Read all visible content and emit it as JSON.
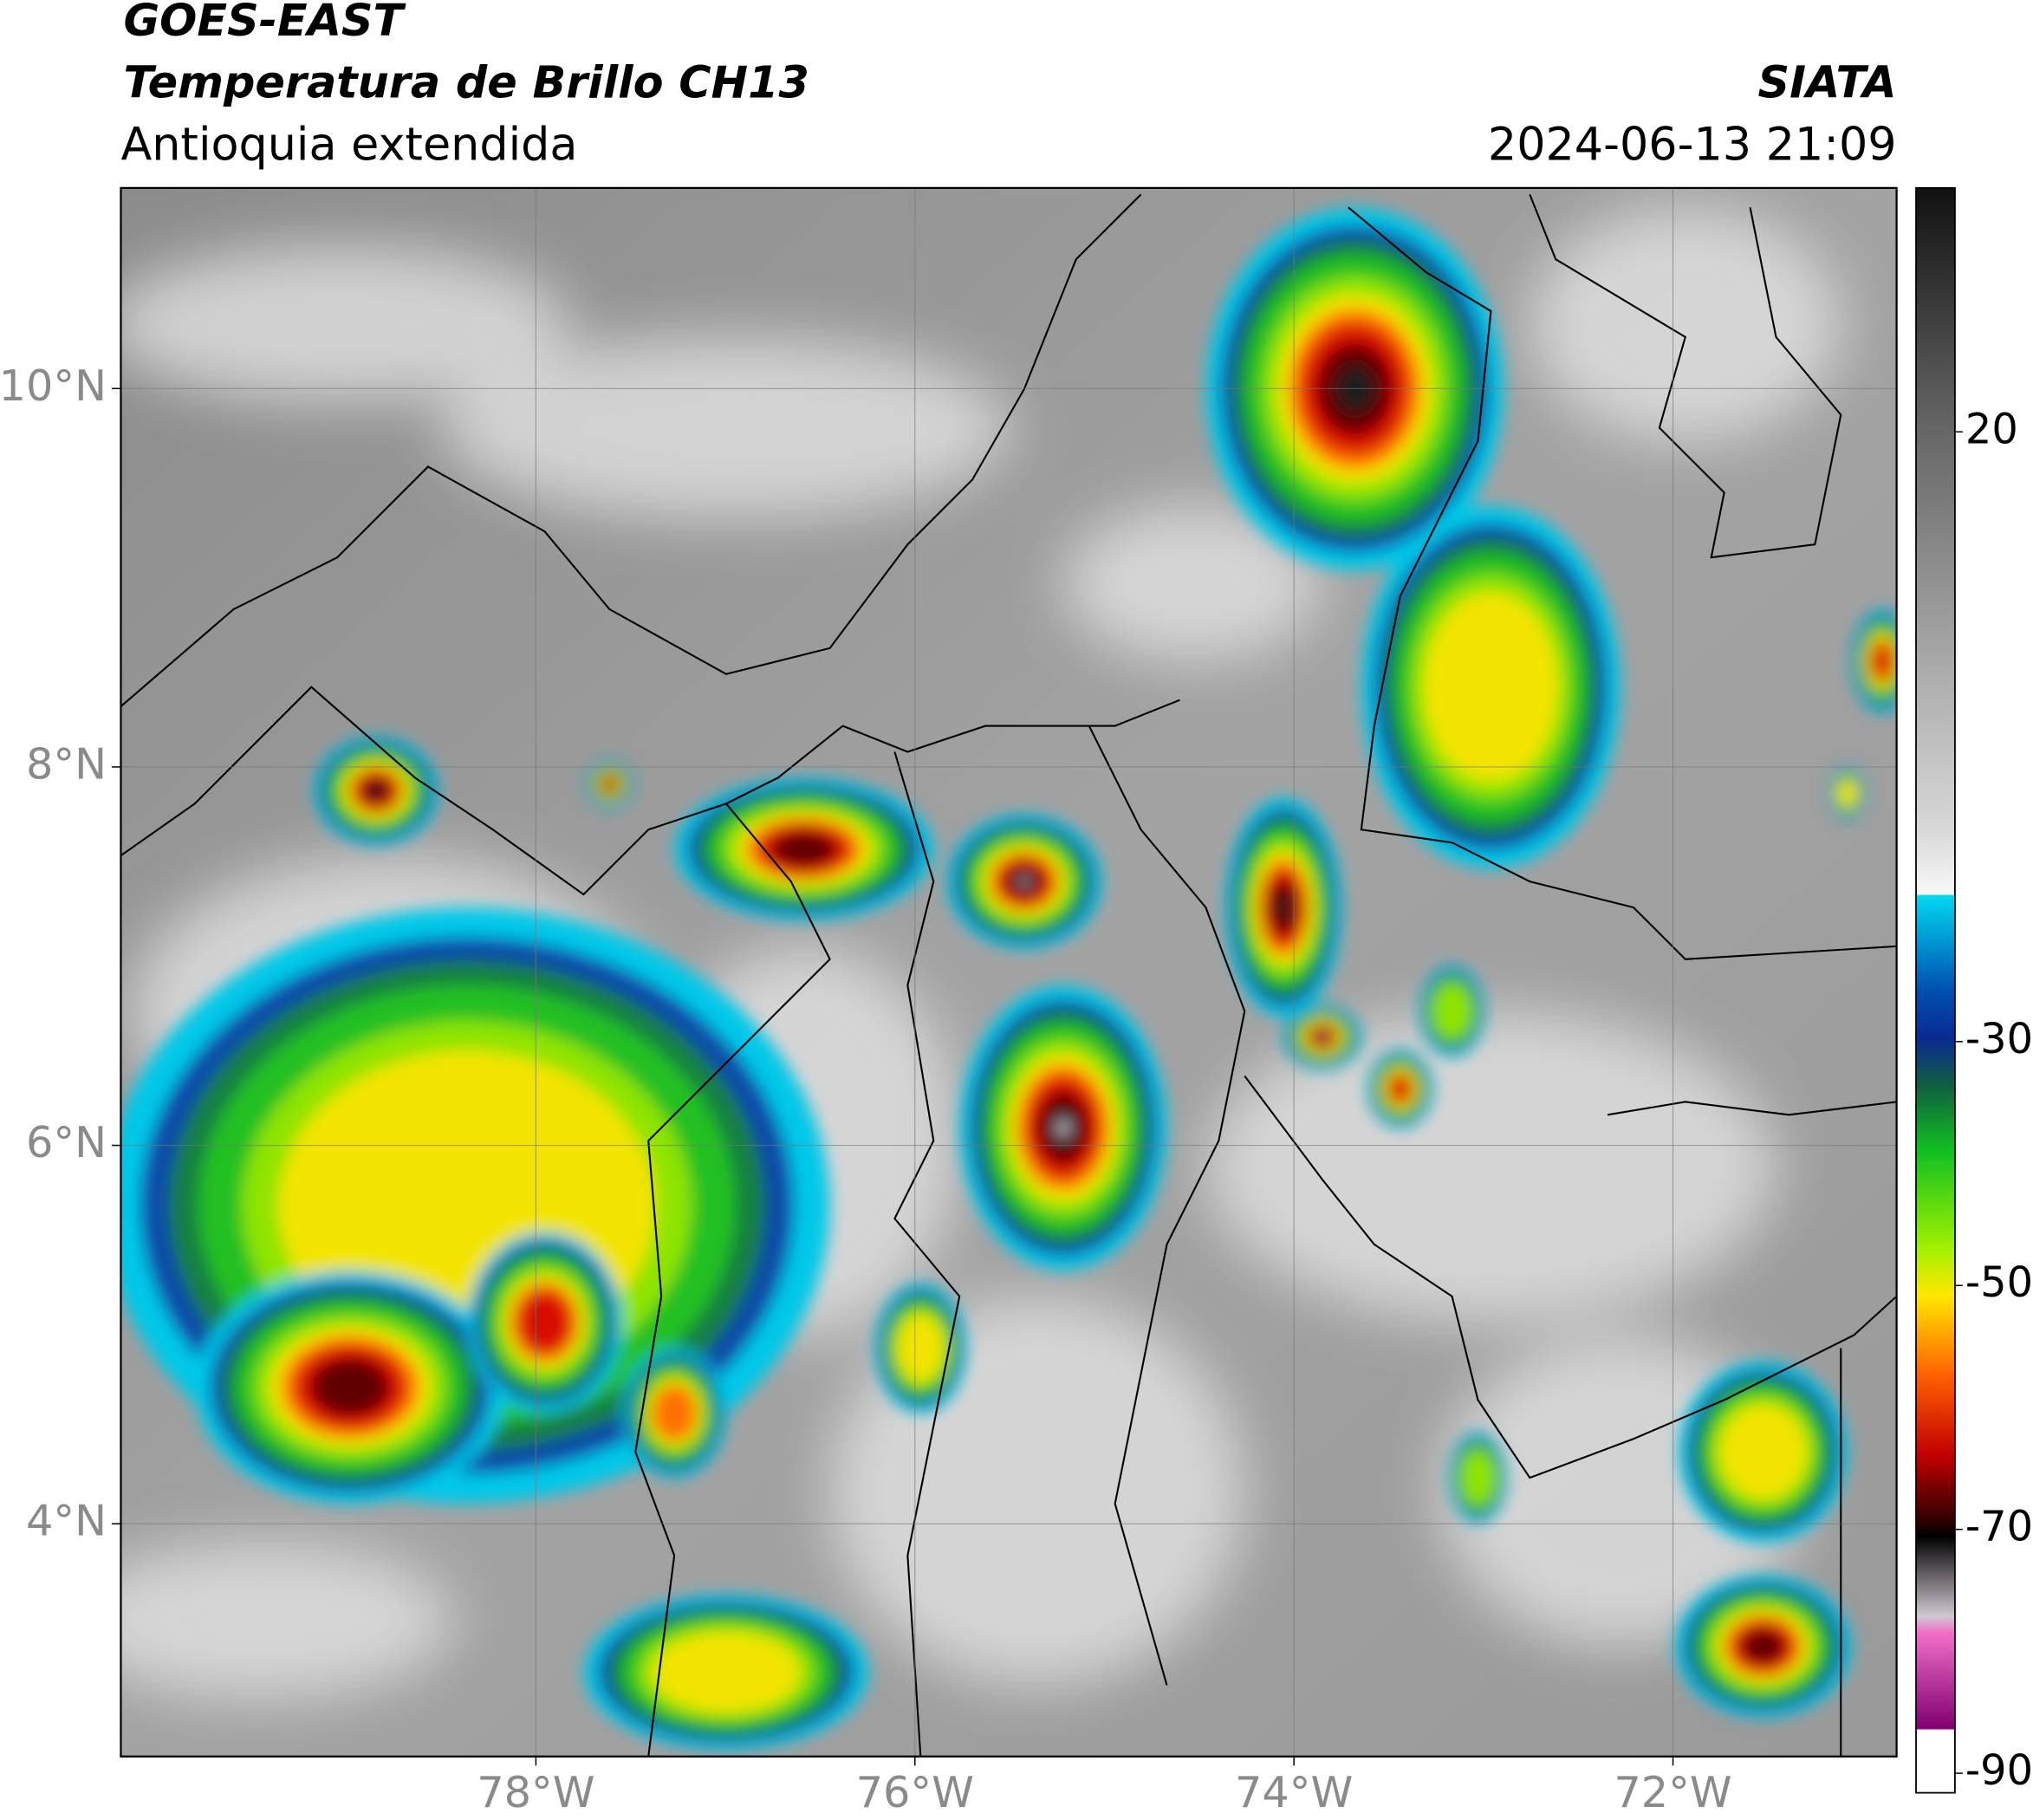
{
  "header": {
    "title": "GOES-EAST",
    "subtitle": "Temperatura de Brillo CH13",
    "region": "Antioquia extendida",
    "source": "SIATA",
    "datetime": "2024-06-13 21:09"
  },
  "map": {
    "xlim": [
      -80.19,
      -70.82
    ],
    "ylim": [
      2.77,
      11.06
    ],
    "xticks": [
      {
        "value": -78,
        "label": "78°W"
      },
      {
        "value": -76,
        "label": "76°W"
      },
      {
        "value": -74,
        "label": "74°W"
      },
      {
        "value": -72,
        "label": "72°W"
      }
    ],
    "yticks": [
      {
        "value": 4,
        "label": "4°N"
      },
      {
        "value": 6,
        "label": "6°N"
      },
      {
        "value": 8,
        "label": "8°N"
      },
      {
        "value": 10,
        "label": "10°N"
      }
    ],
    "grid": true
  },
  "colorbar": {
    "lim": [
      -91.6,
      40
    ],
    "ticks": [
      20,
      -30,
      -50,
      -70,
      -90
    ]
  }
}
